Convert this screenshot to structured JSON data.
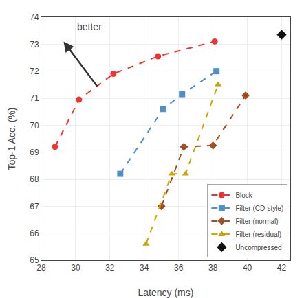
{
  "chart_data": {
    "type": "line",
    "xlabel": "Latency (ms)",
    "ylabel": "Top-1 Acc. (%)",
    "annotations": [
      "better"
    ],
    "xlim": [
      28,
      42.5
    ],
    "ylim": [
      65,
      74
    ],
    "xticks": [
      28,
      30,
      32,
      34,
      36,
      38,
      40,
      42
    ],
    "yticks": [
      65,
      66,
      67,
      68,
      69,
      70,
      71,
      72,
      73,
      74
    ],
    "grid": true,
    "legend": "lower right",
    "series": [
      {
        "name": "Block",
        "type": "line",
        "color": "#ee3333",
        "marker": "circle",
        "line_style": "dashed",
        "x": [
          28.8,
          30.2,
          32.2,
          34.8,
          38.1
        ],
        "values": [
          69.2,
          70.95,
          71.9,
          72.55,
          73.1
        ]
      },
      {
        "name": "Filter (CD-style)",
        "type": "line",
        "color": "#5090c8",
        "marker": "square",
        "line_style": "dashed",
        "x": [
          32.6,
          35.1,
          36.2,
          38.2
        ],
        "values": [
          68.2,
          70.6,
          71.15,
          72.0
        ]
      },
      {
        "name": "Filter (normal)",
        "type": "line",
        "color": "#a05020",
        "marker": "diamond",
        "line_style": "dashed",
        "x": [
          35.0,
          36.3,
          38.0,
          39.9
        ],
        "values": [
          67.0,
          69.2,
          69.25,
          71.1
        ]
      },
      {
        "name": "Filter (residual)",
        "type": "line",
        "color": "#c8a800",
        "marker": "triangle-up",
        "line_style": "dashed",
        "x": [
          34.1,
          35.6,
          36.4,
          38.3
        ],
        "values": [
          65.6,
          68.2,
          68.2,
          71.5
        ]
      },
      {
        "name": "Uncompressed",
        "type": "scatter",
        "color": "#111111",
        "marker": "diamond",
        "x": [
          42.0
        ],
        "values": [
          73.35
        ]
      }
    ]
  }
}
